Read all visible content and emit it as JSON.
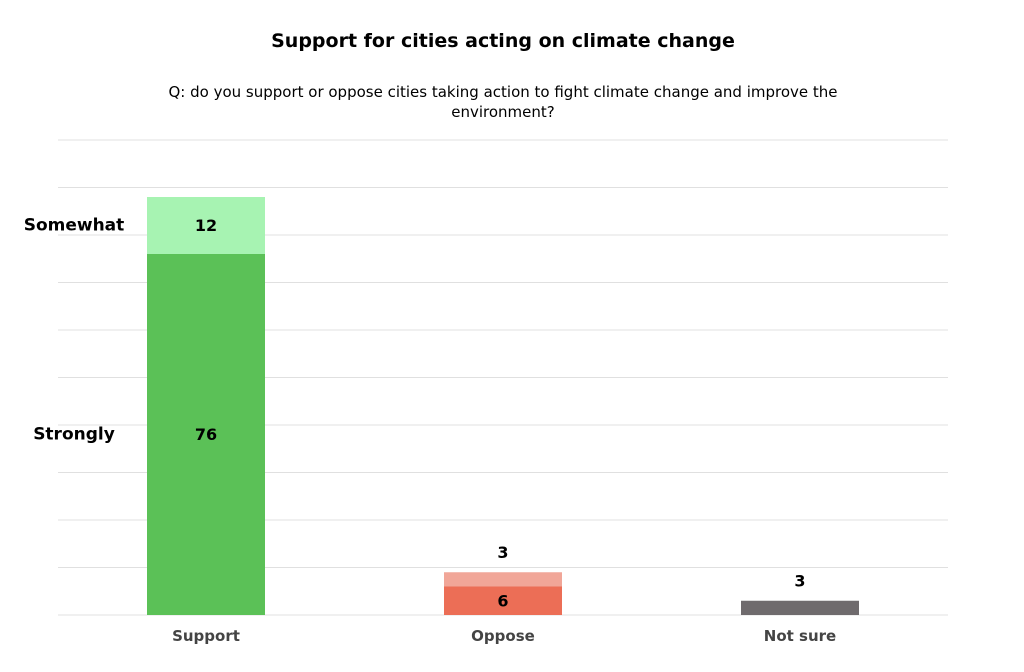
{
  "chart_data": {
    "type": "bar",
    "stacked": true,
    "title": "Support for cities acting on climate change",
    "subtitle": "Q: do you support or oppose cities taking action to fight climate change and improve the environment?",
    "categories": [
      "Support",
      "Oppose",
      "Not sure"
    ],
    "segments": [
      [
        {
          "label": "Strongly",
          "value": 76,
          "color": "#5bc157"
        },
        {
          "label": "Somewhat",
          "value": 12,
          "color": "#a7f3b2"
        }
      ],
      [
        {
          "label": "",
          "value": 6,
          "color": "#ec6e56"
        },
        {
          "label": "",
          "value": 3,
          "color": "#f1a698"
        }
      ],
      [
        {
          "label": "",
          "value": 3,
          "color": "#6f6b6d"
        }
      ]
    ],
    "ylim": [
      0,
      100
    ],
    "gridlines": [
      0,
      10,
      20,
      30,
      40,
      50,
      60,
      70,
      80,
      90,
      100
    ],
    "grid": true,
    "grid_color": "#e0e0e0",
    "tick_label_color": "#444444",
    "value_label_color": "#000000"
  }
}
